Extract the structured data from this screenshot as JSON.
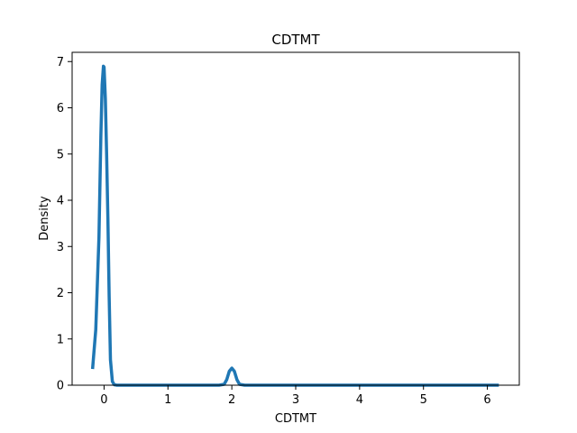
{
  "chart_data": {
    "type": "line",
    "title": "CDTMT",
    "xlabel": "CDTMT",
    "ylabel": "Density",
    "xlim": [
      -0.5,
      6.5
    ],
    "ylim": [
      0,
      7.2
    ],
    "xticks": [
      0,
      1,
      2,
      3,
      4,
      5,
      6
    ],
    "yticks": [
      0,
      1,
      2,
      3,
      4,
      5,
      6,
      7
    ],
    "grid": false,
    "line_color": "#1f77b4",
    "series": [
      {
        "x": [
          -0.18,
          -0.13,
          -0.08,
          -0.05,
          -0.03,
          -0.01,
          0.0,
          0.02,
          0.04,
          0.06,
          0.08,
          0.1,
          0.13,
          0.16,
          0.2,
          0.5,
          1.0,
          1.5,
          1.8,
          1.88,
          1.92,
          1.96,
          2.0,
          2.04,
          2.08,
          2.12,
          2.2,
          3.0,
          4.0,
          5.0,
          6.0,
          6.18
        ],
        "y": [
          0.35,
          1.2,
          3.2,
          5.4,
          6.5,
          6.9,
          6.88,
          6.2,
          5.0,
          3.6,
          1.9,
          0.55,
          0.08,
          0.01,
          0.0,
          0.0,
          0.0,
          0.0,
          0.0,
          0.02,
          0.12,
          0.3,
          0.37,
          0.3,
          0.12,
          0.02,
          0.0,
          0.0,
          0.0,
          0.0,
          0.0,
          0.0
        ]
      }
    ]
  }
}
